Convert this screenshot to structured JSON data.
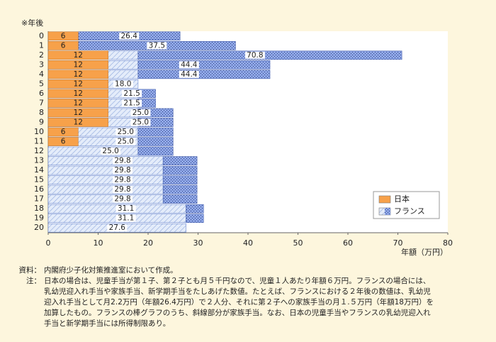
{
  "chart_data": {
    "type": "overlapped-hbar",
    "y_axis_label": "※年後",
    "x_axis_label": "年額（万円）",
    "categories": [
      "0",
      "1",
      "2",
      "3",
      "4",
      "5",
      "6",
      "7",
      "8",
      "9",
      "10",
      "11",
      "12",
      "13",
      "14",
      "15",
      "16",
      "17",
      "18",
      "19",
      "20"
    ],
    "series": [
      {
        "name": "日本",
        "color": "#f7a14a",
        "values": [
          6,
          6,
          12,
          12,
          12,
          12,
          12,
          12,
          12,
          12,
          6,
          6,
          null,
          null,
          null,
          null,
          null,
          null,
          null,
          null,
          null
        ]
      },
      {
        "name": "フランス",
        "color": "#5b7fcf",
        "values": [
          26.4,
          37.5,
          70.8,
          44.4,
          44.4,
          18.0,
          21.5,
          21.5,
          25.0,
          25.0,
          25.0,
          25.0,
          25.0,
          29.8,
          29.8,
          29.8,
          29.8,
          29.8,
          31.1,
          31.1,
          27.6
        ],
        "value_labels": [
          "26.4",
          "37.5",
          "70.8",
          "44.4",
          "44.4",
          "18.0",
          "21.5",
          "21.5",
          "25.0",
          "25.0",
          "25.0",
          "25.0",
          "25.0",
          "29.8",
          "29.8",
          "29.8",
          "29.8",
          "29.8",
          "31.1",
          "31.1",
          "27.6"
        ],
        "hatched_values": [
          0,
          0,
          18,
          18,
          18,
          18,
          18,
          18,
          18,
          18,
          18,
          18,
          18,
          23,
          23,
          23,
          23,
          23,
          27.6,
          27.6,
          27.6
        ]
      }
    ],
    "xlim": [
      0,
      80
    ],
    "xticks": [
      0,
      10,
      20,
      30,
      40,
      50,
      60,
      70,
      80
    ],
    "legend": "bottom-right"
  },
  "notes": {
    "source_label": "資料：",
    "source": "内閣府少子化対策推進室において作成。",
    "note_label": "注：",
    "note_lines": [
      "日本の場合は、児童手当が第１子、第２子とも月５千円なので、児童１人あたり年額６万円。フランスの場合には、",
      "乳幼児迎入れ手当や家族手当、新学期手当をたしあげた数値。たとえば、フランスにおける２年後の数値は、乳幼児",
      "迎入れ手当として月2.2万円（年額26.4万円）で２人分、それに第２子への家族手当の月１.５万円（年額18万円）を",
      "加算したもの。フランスの棒グラフのうち、斜線部分が家族手当。なお、日本の児童手当やフランスの乳幼児迎入れ",
      "手当と新学期手当には所得制限あり。"
    ]
  }
}
